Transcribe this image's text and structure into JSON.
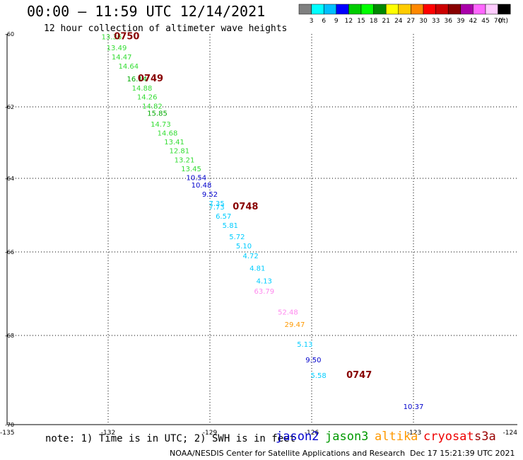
{
  "title": "00:00 – 11:59 UTC 12/14/2021",
  "subtitle": "12 hour collection of altimeter wave heights",
  "note": "note: 1) Time is in UTC; 2) SWH is in feet",
  "missions": [
    {
      "name": "jason2",
      "color": "#0000cc"
    },
    {
      "name": "jason3",
      "color": "#009900"
    },
    {
      "name": "altika",
      "color": "#ff9900"
    },
    {
      "name": "cryosat",
      "color": "#ee0000"
    },
    {
      "name": "s3a",
      "color": "#990000"
    }
  ],
  "credit": "NOAA/NESDIS Center for Satellite Applications and Research",
  "timestamp": "Dec 17 15:21:39 UTC 2021",
  "legend": {
    "unit": "(ft)",
    "colors": [
      "#808080",
      "#00ffff",
      "#00bfff",
      "#0000ff",
      "#00cc00",
      "#00ff00",
      "#008800",
      "#ffff00",
      "#ffcc00",
      "#ff8800",
      "#ff0000",
      "#cc0000",
      "#880000",
      "#aa00aa",
      "#ff66ff",
      "#ffccff",
      "#000000"
    ],
    "ticks": [
      "3",
      "6",
      "9",
      "12",
      "15",
      "18",
      "21",
      "24",
      "27",
      "30",
      "33",
      "36",
      "39",
      "42",
      "45",
      "70"
    ]
  },
  "chart_data": {
    "type": "scatter",
    "title": "00:00 – 11:59 UTC 12/14/2021",
    "xlim": [
      -135,
      -124
    ],
    "ylim": [
      -70,
      -60
    ],
    "x_ticks": [
      "-135",
      "-132",
      "-129",
      "-126",
      "-123",
      "-124"
    ],
    "y_ticks": [
      "-60",
      "-62",
      "-64",
      "-66",
      "-68",
      "-70"
    ],
    "grid": true,
    "points": [
      {
        "lon": -131.9,
        "lat": -60.15,
        "swh": "13.36",
        "color": "#33dd33"
      },
      {
        "lon": -131.75,
        "lat": -60.45,
        "swh": "13.49",
        "color": "#33dd33"
      },
      {
        "lon": -131.6,
        "lat": -60.7,
        "swh": "14.47",
        "color": "#33dd33"
      },
      {
        "lon": -131.4,
        "lat": -60.95,
        "swh": "14.64",
        "color": "#33dd33"
      },
      {
        "lon": -131.15,
        "lat": -61.3,
        "swh": "16.14",
        "color": "#00aa00"
      },
      {
        "lon": -131.0,
        "lat": -61.55,
        "swh": "14.88",
        "color": "#33dd33"
      },
      {
        "lon": -130.85,
        "lat": -61.8,
        "swh": "14.26",
        "color": "#33dd33"
      },
      {
        "lon": -130.7,
        "lat": -62.05,
        "swh": "14.82",
        "color": "#33dd33"
      },
      {
        "lon": -130.55,
        "lat": -62.25,
        "swh": "15.85",
        "color": "#00aa00"
      },
      {
        "lon": -130.45,
        "lat": -62.55,
        "swh": "14.73",
        "color": "#33dd33"
      },
      {
        "lon": -130.25,
        "lat": -62.8,
        "swh": "14.68",
        "color": "#33dd33"
      },
      {
        "lon": -130.05,
        "lat": -63.05,
        "swh": "13.41",
        "color": "#33dd33"
      },
      {
        "lon": -129.9,
        "lat": -63.3,
        "swh": "12.81",
        "color": "#33dd33"
      },
      {
        "lon": -129.75,
        "lat": -63.55,
        "swh": "13.21",
        "color": "#33dd33"
      },
      {
        "lon": -129.55,
        "lat": -63.8,
        "swh": "13.45",
        "color": "#33dd33"
      },
      {
        "lon": -129.4,
        "lat": -64.05,
        "swh": "10.54",
        "color": "#0000cc"
      },
      {
        "lon": -129.25,
        "lat": -64.25,
        "swh": "10.48",
        "color": "#0000cc"
      },
      {
        "lon": -129.0,
        "lat": -64.5,
        "swh": "9.52",
        "color": "#0000cc"
      },
      {
        "lon": -128.8,
        "lat": -64.75,
        "swh": "7.35",
        "color": "#00ccff"
      },
      {
        "lon": -128.8,
        "lat": -64.85,
        "swh": "7.73",
        "color": "#00ccff"
      },
      {
        "lon": -128.6,
        "lat": -65.1,
        "swh": "6.57",
        "color": "#00ccff"
      },
      {
        "lon": -128.4,
        "lat": -65.35,
        "swh": "5.81",
        "color": "#00ccff"
      },
      {
        "lon": -128.2,
        "lat": -65.65,
        "swh": "5.72",
        "color": "#00ccff"
      },
      {
        "lon": -128.0,
        "lat": -65.9,
        "swh": "5.10",
        "color": "#00ccff"
      },
      {
        "lon": -127.8,
        "lat": -66.15,
        "swh": "4.72",
        "color": "#00ccff"
      },
      {
        "lon": -127.6,
        "lat": -66.45,
        "swh": "4.81",
        "color": "#00ccff"
      },
      {
        "lon": -127.4,
        "lat": -66.75,
        "swh": "4.13",
        "color": "#00ccff"
      },
      {
        "lon": -127.4,
        "lat": -67.0,
        "swh": "63.79",
        "color": "#ff88ee"
      },
      {
        "lon": -126.7,
        "lat": -67.5,
        "swh": "52.48",
        "color": "#ff88ee"
      },
      {
        "lon": -126.5,
        "lat": -67.8,
        "swh": "29.47",
        "color": "#ff9900"
      },
      {
        "lon": -126.2,
        "lat": -68.25,
        "swh": "5.13",
        "color": "#00ccff"
      },
      {
        "lon": -125.95,
        "lat": -68.6,
        "swh": "9.50",
        "color": "#0000cc"
      },
      {
        "lon": -125.8,
        "lat": -68.95,
        "swh": "5.58",
        "color": "#00ccff"
      },
      {
        "lon": -123.0,
        "lat": -69.65,
        "swh": "10.37",
        "color": "#0000cc"
      }
    ],
    "time_labels": [
      {
        "lon": -131.45,
        "lat": -60.15,
        "text": "0750"
      },
      {
        "lon": -130.75,
        "lat": -61.3,
        "text": "0749"
      },
      {
        "lon": -127.95,
        "lat": -64.85,
        "text": "0748"
      },
      {
        "lon": -124.6,
        "lat": -68.95,
        "text": "0747"
      }
    ]
  }
}
